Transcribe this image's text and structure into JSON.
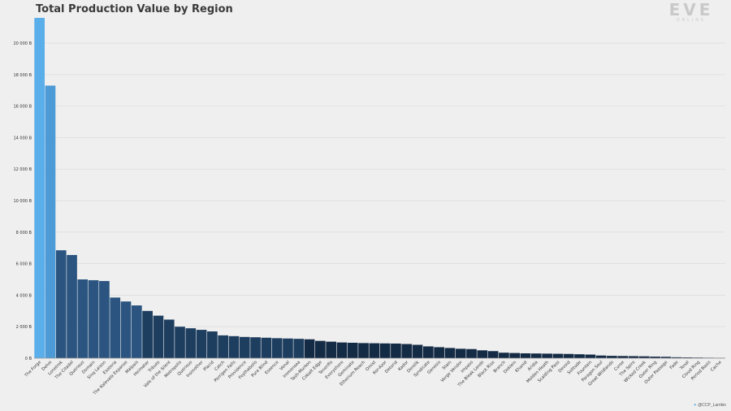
{
  "chart_data": {
    "type": "bar",
    "title": "Total Production Value by Region",
    "xlabel": "",
    "ylabel": "",
    "ylim": [
      0,
      21600
    ],
    "yticks": [
      0,
      2000,
      4000,
      6000,
      8000,
      10000,
      12000,
      14000,
      16000,
      18000,
      20000
    ],
    "ytick_labels": [
      "0 B",
      "2 000 B",
      "4 000 B",
      "6 000 B",
      "8 000 B",
      "10 000 B",
      "12 000 B",
      "14 000 B",
      "16 000 B",
      "18 000 B",
      "20 000 B"
    ],
    "grid": true,
    "legend": "none",
    "categories": [
      "The Forge",
      "Delve",
      "Lonetrek",
      "The Citadel",
      "Querious",
      "Domain",
      "Sinq Laison",
      "Esoteria",
      "The Kalevala Expanse",
      "Malpais",
      "Heimatar",
      "Tribute",
      "Vale of the Silent",
      "Metropolis",
      "Querious",
      "Insmother",
      "Placid",
      "Catch",
      "Perrigen Falls",
      "Providence",
      "Feythabolis",
      "Pure Blind",
      "Essence",
      "Venal",
      "Immensea",
      "Tash-Murkon",
      "Cobalt Edge",
      "Tenerifis",
      "Everyshore",
      "Geminate",
      "Etherium Reach",
      "Omist",
      "Kor-Azor",
      "Detorid",
      "Kador",
      "Derelik",
      "Syndicate",
      "Genesis",
      "Stain",
      "Verge Vendor",
      "Impass",
      "The Bleak Lands",
      "Black Rise",
      "Branch",
      "Deklein",
      "Khanid",
      "Aridia",
      "Molden Heath",
      "Scalding Pass",
      "Devoid",
      "Solitude",
      "Fountain",
      "Paragon Soul",
      "Great Wildlands",
      "Curse",
      "The Spire",
      "Wicked Creek",
      "Outer Ring",
      "Outer Passage",
      "Fade",
      "Tenal",
      "Cloud Ring",
      "Period Basis",
      "Cache"
    ],
    "values": [
      21600,
      17300,
      6850,
      6550,
      5000,
      4950,
      4900,
      3850,
      3600,
      3350,
      3000,
      2700,
      2450,
      2000,
      1900,
      1800,
      1700,
      1450,
      1400,
      1350,
      1330,
      1300,
      1270,
      1250,
      1230,
      1200,
      1100,
      1050,
      1000,
      980,
      960,
      950,
      940,
      930,
      900,
      850,
      750,
      700,
      650,
      600,
      580,
      500,
      450,
      350,
      330,
      310,
      300,
      290,
      280,
      270,
      250,
      230,
      170,
      150,
      140,
      130,
      120,
      100,
      90,
      60,
      50,
      40,
      30,
      20
    ],
    "colors": {
      "top": "#5aaeea",
      "second": "#4c9ad6",
      "high": "#2b5580",
      "mid": "#1e3e60",
      "low": "#142b45"
    }
  },
  "branding": {
    "logo_word": "EVE",
    "logo_sub": "ONLINE",
    "credit": "@CCP_Larrikin",
    "credit_icon": "twitter-bird-icon"
  }
}
